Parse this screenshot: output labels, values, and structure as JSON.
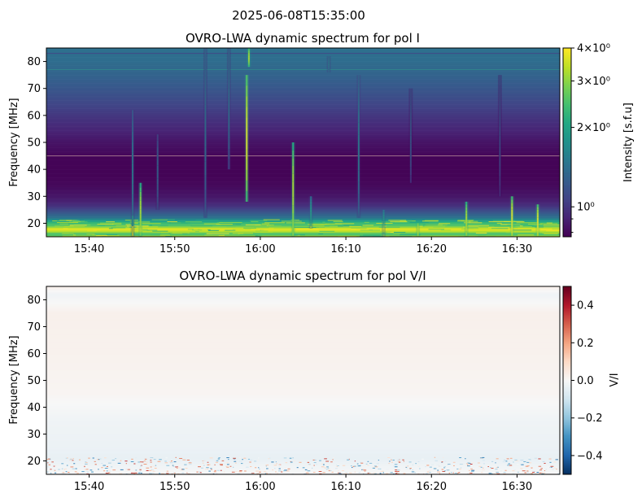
{
  "suptitle": "2025-06-08T15:35:00",
  "chart_data": [
    {
      "type": "heatmap",
      "title": "OVRO-LWA dynamic spectrum for pol I",
      "ylabel": "Frequency [MHz]",
      "xlabel": "",
      "xlim": [
        "15:35",
        "16:35"
      ],
      "ylim": [
        15,
        85
      ],
      "x_ticks": [
        "15:40",
        "15:50",
        "16:00",
        "16:10",
        "16:20",
        "16:30"
      ],
      "y_ticks": [
        20,
        30,
        40,
        50,
        60,
        70,
        80
      ],
      "colormap": "viridis",
      "color_scale": "log",
      "colorbar": {
        "label": "Intensity [s.f.u]",
        "range": [
          0.77,
          4
        ],
        "ticks": [
          {
            "value": 4,
            "label": "4×10⁰"
          },
          {
            "value": 3,
            "label": "3×10⁰"
          },
          {
            "value": 2,
            "label": "2×10⁰"
          },
          {
            "value": 1,
            "label": "10⁰"
          }
        ],
        "minor_ticks": [
          0.9,
          0.8
        ]
      },
      "background_profile": [
        {
          "mhz": 15,
          "value": 3.6
        },
        {
          "mhz": 16,
          "value": 2.2
        },
        {
          "mhz": 17,
          "value": 3.4
        },
        {
          "mhz": 18,
          "value": 3.8
        },
        {
          "mhz": 19,
          "value": 2.6
        },
        {
          "mhz": 20,
          "value": 2.4
        },
        {
          "mhz": 21,
          "value": 1.9
        },
        {
          "mhz": 22,
          "value": 1.45
        },
        {
          "mhz": 24,
          "value": 1.2
        },
        {
          "mhz": 26,
          "value": 1.0
        },
        {
          "mhz": 28,
          "value": 0.9
        },
        {
          "mhz": 30,
          "value": 0.85
        },
        {
          "mhz": 34,
          "value": 0.8
        },
        {
          "mhz": 38,
          "value": 0.78
        },
        {
          "mhz": 44,
          "value": 0.78
        },
        {
          "mhz": 50,
          "value": 0.84
        },
        {
          "mhz": 55,
          "value": 0.92
        },
        {
          "mhz": 60,
          "value": 1.0
        },
        {
          "mhz": 65,
          "value": 1.1
        },
        {
          "mhz": 70,
          "value": 1.2
        },
        {
          "mhz": 75,
          "value": 1.3
        },
        {
          "mhz": 80,
          "value": 1.38
        },
        {
          "mhz": 85,
          "value": 1.42
        }
      ],
      "horizontal_artifacts_mhz": [
        45,
        77,
        83
      ],
      "bursts": [
        {
          "time": "15:45:05",
          "f_low": 15,
          "f_high": 62,
          "peak": 1.6
        },
        {
          "time": "15:46:00",
          "f_low": 15,
          "f_high": 35,
          "peak": 3.5
        },
        {
          "time": "15:48:00",
          "f_low": 25,
          "f_high": 53,
          "peak": 1.4
        },
        {
          "time": "15:53:35",
          "f_low": 22,
          "f_high": 85,
          "peak": 1.5
        },
        {
          "time": "15:56:20",
          "f_low": 40,
          "f_high": 85,
          "peak": 1.5
        },
        {
          "time": "15:58:25",
          "f_low": 28,
          "f_high": 75,
          "peak": 4.0
        },
        {
          "time": "15:58:40",
          "f_low": 78,
          "f_high": 85,
          "peak": 3.5
        },
        {
          "time": "16:03:50",
          "f_low": 15,
          "f_high": 50,
          "peak": 3.5
        },
        {
          "time": "16:05:55",
          "f_low": 18,
          "f_high": 30,
          "peak": 2.0
        },
        {
          "time": "16:08:00",
          "f_low": 76,
          "f_high": 82,
          "peak": 1.6
        },
        {
          "time": "16:11:30",
          "f_low": 22,
          "f_high": 75,
          "peak": 1.6
        },
        {
          "time": "16:14:25",
          "f_low": 15,
          "f_high": 25,
          "peak": 2.0
        },
        {
          "time": "16:17:35",
          "f_low": 35,
          "f_high": 70,
          "peak": 1.3
        },
        {
          "time": "16:18:25",
          "f_low": 15,
          "f_high": 20,
          "peak": 3.5
        },
        {
          "time": "16:24:05",
          "f_low": 15,
          "f_high": 28,
          "peak": 3.5
        },
        {
          "time": "16:28:00",
          "f_low": 30,
          "f_high": 75,
          "peak": 1.2
        },
        {
          "time": "16:29:25",
          "f_low": 15,
          "f_high": 30,
          "peak": 4.0
        },
        {
          "time": "16:32:25",
          "f_low": 15,
          "f_high": 27,
          "peak": 4.0
        }
      ]
    },
    {
      "type": "heatmap",
      "title": "OVRO-LWA dynamic spectrum for pol V/I",
      "ylabel": "Frequency [MHz]",
      "xlabel": "",
      "xlim": [
        "15:35",
        "16:35"
      ],
      "ylim": [
        15,
        85
      ],
      "x_ticks": [
        "15:40",
        "15:50",
        "16:00",
        "16:10",
        "16:20",
        "16:30"
      ],
      "y_ticks": [
        20,
        30,
        40,
        50,
        60,
        70,
        80
      ],
      "colormap": "RdBu_r",
      "color_scale": "linear",
      "colorbar": {
        "label": "V/I",
        "range": [
          -0.5,
          0.5
        ],
        "ticks": [
          {
            "value": 0.4,
            "label": "0.4"
          },
          {
            "value": 0.2,
            "label": "0.2"
          },
          {
            "value": 0.0,
            "label": "0.0"
          },
          {
            "value": -0.2,
            "label": "−0.2"
          },
          {
            "value": -0.4,
            "label": "−0.4"
          }
        ]
      },
      "background_profile": [
        {
          "mhz": 15,
          "value": 0.0
        },
        {
          "mhz": 21,
          "value": -0.04
        },
        {
          "mhz": 25,
          "value": -0.03
        },
        {
          "mhz": 35,
          "value": -0.02
        },
        {
          "mhz": 45,
          "value": 0.01
        },
        {
          "mhz": 60,
          "value": 0.02
        },
        {
          "mhz": 75,
          "value": 0.025
        },
        {
          "mhz": 82,
          "value": -0.02
        },
        {
          "mhz": 85,
          "value": 0.025
        }
      ],
      "noisy_band_mhz": [
        15,
        21
      ]
    }
  ]
}
